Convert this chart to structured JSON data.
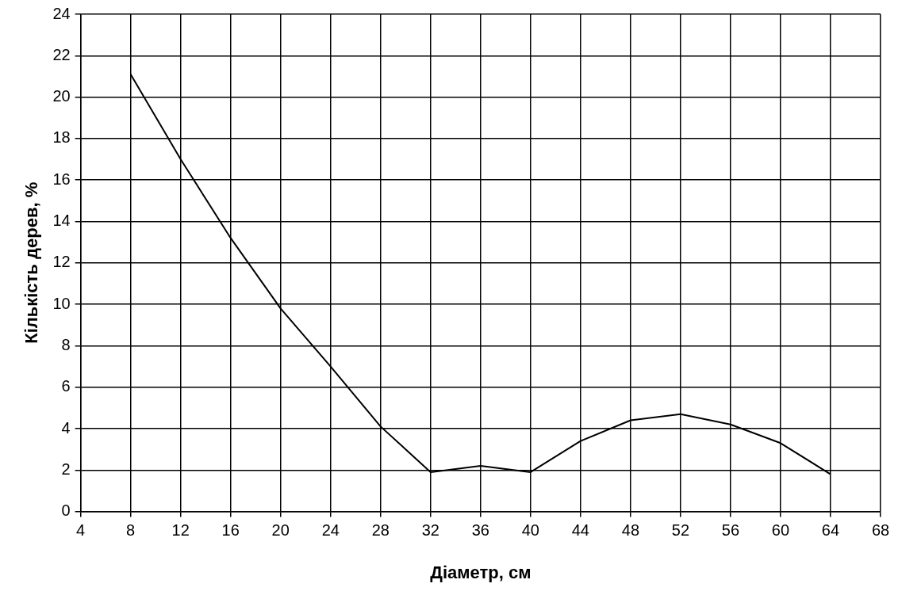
{
  "chart_data": {
    "type": "line",
    "xlabel": "Діаметр, см",
    "ylabel": "Кількість дерев, %",
    "x": [
      8,
      12,
      16,
      20,
      24,
      28,
      32,
      36,
      40,
      44,
      48,
      52,
      56,
      60,
      64
    ],
    "series": [
      {
        "color": "#000000",
        "values": [
          21.1,
          17.0,
          13.2,
          9.8,
          7.0,
          4.1,
          1.9,
          2.2,
          1.9,
          3.4,
          4.4,
          4.7,
          4.2,
          3.3,
          1.8
        ]
      }
    ],
    "xlim": [
      4,
      68
    ],
    "xticks": [
      4,
      8,
      12,
      16,
      20,
      24,
      28,
      32,
      36,
      40,
      44,
      48,
      52,
      56,
      60,
      64,
      68
    ],
    "ylim": [
      0,
      24
    ],
    "yticks": [
      0,
      2,
      4,
      6,
      8,
      10,
      12,
      14,
      16,
      18,
      20,
      22,
      24
    ],
    "grid": true,
    "legend": false,
    "marker": "none",
    "line_style": "solid"
  }
}
